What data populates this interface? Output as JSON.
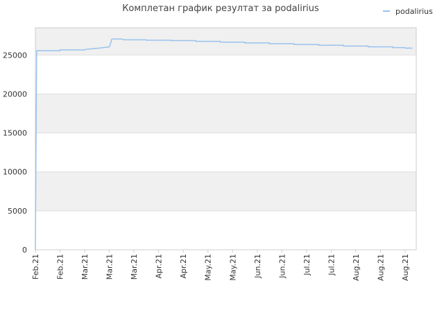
{
  "chart_data": {
    "type": "line",
    "title": "Комплетан график резултат за podalirius",
    "xlabel": "",
    "ylabel": "",
    "ylim": [
      0,
      28500
    ],
    "yticks": [
      0,
      5000,
      10000,
      15000,
      20000,
      25000
    ],
    "x_tick_labels": [
      "Feb.21",
      "Feb.21",
      "Mar.21",
      "Mar.21",
      "Mar.21",
      "Apr.21",
      "Apr.21",
      "May.21",
      "May.21",
      "Jun.21",
      "Jun.21",
      "Jul.21",
      "Jul.21",
      "Aug.21",
      "Aug.21",
      "Aug.21"
    ],
    "grid": true,
    "legend_position": "top-right",
    "colors": {
      "series": "#99c2ee",
      "band": "#f0f0f0",
      "grid": "#dddddd",
      "axis": "#cccccc"
    },
    "series": [
      {
        "name": "podalirius",
        "points": [
          [
            0.0,
            0
          ],
          [
            0.05,
            25550
          ],
          [
            1.0,
            25550
          ],
          [
            1.0,
            25650
          ],
          [
            2.0,
            25650
          ],
          [
            2.0,
            25700
          ],
          [
            2.3,
            25800
          ],
          [
            2.6,
            25900
          ],
          [
            2.9,
            26000
          ],
          [
            3.0,
            26050
          ],
          [
            3.05,
            26500
          ],
          [
            3.1,
            27050
          ],
          [
            3.5,
            27050
          ],
          [
            3.6,
            26950
          ],
          [
            4.5,
            26950
          ],
          [
            4.5,
            26900
          ],
          [
            5.5,
            26900
          ],
          [
            5.5,
            26850
          ],
          [
            6.5,
            26850
          ],
          [
            6.5,
            26750
          ],
          [
            7.5,
            26750
          ],
          [
            7.5,
            26650
          ],
          [
            8.5,
            26650
          ],
          [
            8.5,
            26550
          ],
          [
            9.5,
            26550
          ],
          [
            9.5,
            26450
          ],
          [
            10.5,
            26450
          ],
          [
            10.5,
            26350
          ],
          [
            11.5,
            26350
          ],
          [
            11.5,
            26250
          ],
          [
            12.5,
            26250
          ],
          [
            12.5,
            26150
          ],
          [
            13.5,
            26150
          ],
          [
            13.5,
            26050
          ],
          [
            14.5,
            26050
          ],
          [
            14.5,
            25950
          ],
          [
            15.0,
            25950
          ],
          [
            15.0,
            25880
          ],
          [
            15.3,
            25880
          ]
        ]
      }
    ]
  }
}
